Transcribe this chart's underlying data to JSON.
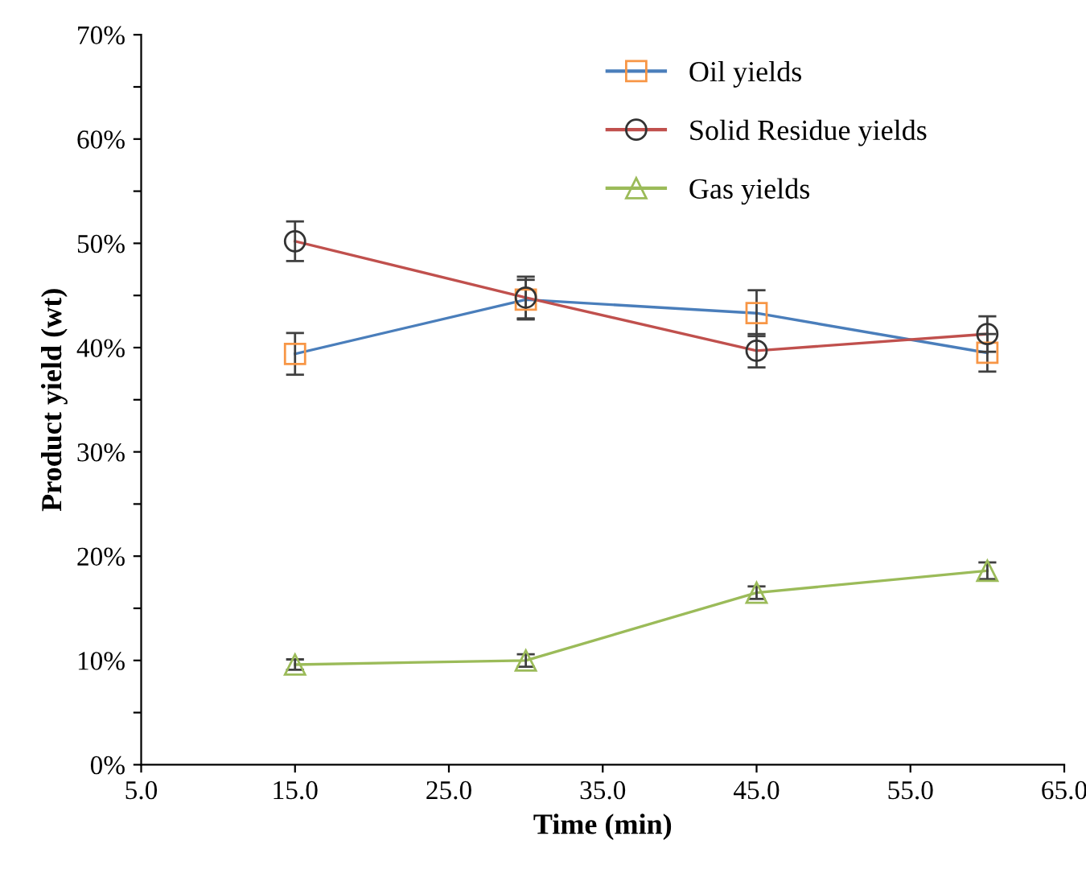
{
  "chart_data": {
    "type": "line",
    "xlabel": "Time (min)",
    "ylabel": "Product yield (wt)",
    "x": [
      15,
      30,
      45,
      60
    ],
    "series": [
      {
        "name": "Oil yields",
        "color": "#4a7ebb",
        "colors": [
          "#f79646",
          "#f79646",
          "#f79646",
          "#f79646"
        ],
        "values": [
          39.4,
          44.6,
          43.3,
          39.5
        ],
        "errors": [
          2.0,
          1.9,
          2.2,
          1.8
        ]
      },
      {
        "name": "Solid Residue yields",
        "color": "#c0504d",
        "colors": [
          "#333333",
          "#333333",
          "#333333",
          "#333333"
        ],
        "values": [
          50.2,
          44.8,
          39.7,
          41.3
        ],
        "errors": [
          1.9,
          2.0,
          1.6,
          1.7
        ],
        "marker": "circle"
      },
      {
        "name": "Gas yields",
        "color": "#9bbb59",
        "colors": [
          "#9bbb59",
          "#9bbb59",
          "#9bbb59",
          "#9bbb59"
        ],
        "values": [
          9.6,
          10.0,
          16.5,
          18.6
        ],
        "errors": [
          0.5,
          0.6,
          0.6,
          0.8
        ],
        "marker": "triangle"
      }
    ],
    "marker": "square",
    "line_style": "solid",
    "grid": false,
    "legend": "top right",
    "xlim": [
      5,
      65
    ],
    "ylim": [
      0,
      70
    ],
    "xticks": [
      {
        "value": 5,
        "label": "5.0"
      },
      {
        "value": 15,
        "label": "15.0"
      },
      {
        "value": 25,
        "label": "25.0"
      },
      {
        "value": 35,
        "label": "35.0"
      },
      {
        "value": 45,
        "label": "45.0"
      },
      {
        "value": 55,
        "label": "55.0"
      },
      {
        "value": 65,
        "label": "65.0"
      }
    ],
    "yticks": [
      {
        "value": 0,
        "label": "0%"
      },
      {
        "value": 5,
        "label": null
      },
      {
        "value": 10,
        "label": "10%"
      },
      {
        "value": 15,
        "label": null
      },
      {
        "value": 20,
        "label": "20%"
      },
      {
        "value": 25,
        "label": null
      },
      {
        "value": 30,
        "label": "30%"
      },
      {
        "value": 35,
        "label": null
      },
      {
        "value": 40,
        "label": "40%"
      },
      {
        "value": 45,
        "label": null
      },
      {
        "value": 50,
        "label": "50%"
      },
      {
        "value": 55,
        "label": null
      },
      {
        "value": 60,
        "label": "60%"
      },
      {
        "value": 65,
        "label": null
      },
      {
        "value": 70,
        "label": "70%"
      }
    ]
  }
}
